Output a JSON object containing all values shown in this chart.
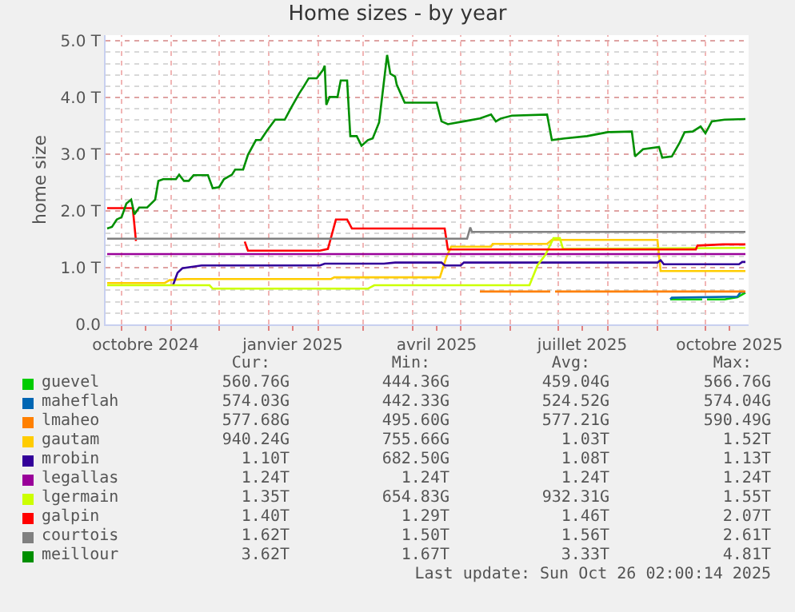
{
  "chart_data": {
    "type": "line",
    "title": "Home sizes - by year",
    "ylabel": "home size",
    "xlim": [
      "2024-09-21",
      "2025-10-28"
    ],
    "xticks": [
      {
        "value": "2024-10-01",
        "label": null
      },
      {
        "value": "2024-10-16",
        "label": "octobre 2024"
      },
      {
        "value": "2024-11-01",
        "label": null
      },
      {
        "value": "2024-12-01",
        "label": null
      },
      {
        "value": "2025-01-01",
        "label": null
      },
      {
        "value": "2025-01-16",
        "label": "janvier 2025"
      },
      {
        "value": "2025-02-01",
        "label": null
      },
      {
        "value": "2025-03-01",
        "label": null
      },
      {
        "value": "2025-04-01",
        "label": null
      },
      {
        "value": "2025-04-16",
        "label": "avril 2025"
      },
      {
        "value": "2025-05-01",
        "label": null
      },
      {
        "value": "2025-06-01",
        "label": null
      },
      {
        "value": "2025-07-01",
        "label": null
      },
      {
        "value": "2025-07-16",
        "label": "juillet 2025"
      },
      {
        "value": "2025-08-01",
        "label": null
      },
      {
        "value": "2025-09-01",
        "label": null
      },
      {
        "value": "2025-10-01",
        "label": null
      },
      {
        "value": "2025-10-16",
        "label": "octobre 2025"
      }
    ],
    "ylim": [
      0,
      5.1
    ],
    "yticks": [
      {
        "value": 0,
        "label": "0.0"
      },
      {
        "value": 1,
        "label": "1.0 T"
      },
      {
        "value": 2,
        "label": "2.0 T"
      },
      {
        "value": 3,
        "label": "3.0 T"
      },
      {
        "value": 4,
        "label": "4.0 T"
      },
      {
        "value": 5,
        "label": "5.0 T"
      }
    ],
    "grid": true,
    "legend": "bottom",
    "marker": "none",
    "line_style": "solid",
    "series": [
      {
        "name": "guevel",
        "color": "#00cc00",
        "x": [
          "2025-09-09",
          "2025-09-29",
          "2025-09-30",
          "2025-10-02",
          "2025-10-13",
          "2025-10-15",
          "2025-10-21",
          "2025-10-26"
        ],
        "values": [
          0.44,
          0.44,
          null,
          0.44,
          0.44,
          0.45,
          0.48,
          0.56
        ]
      },
      {
        "name": "maheflah",
        "color": "#0066b3",
        "x": [
          "2025-09-09",
          "2025-09-10",
          "2025-10-21",
          "2025-10-23",
          "2025-10-26"
        ],
        "values": [
          0.44,
          0.47,
          0.49,
          0.57,
          0.57
        ]
      },
      {
        "name": "lmaheo",
        "color": "#ff8000",
        "x": [
          "2025-05-13",
          "2025-06-26",
          "2025-06-27",
          "2025-06-29",
          "2025-10-26"
        ],
        "values": [
          0.58,
          0.58,
          null,
          0.58,
          0.58
        ]
      },
      {
        "name": "gautam",
        "color": "#ffcc00",
        "x": [
          "2024-09-22",
          "2024-10-28",
          "2024-10-31",
          "2024-11-09",
          "2025-02-09",
          "2025-02-11",
          "2025-04-18",
          "2025-04-22",
          "2025-04-25",
          "2025-05-20",
          "2025-05-21",
          "2025-06-24",
          "2025-06-27",
          "2025-09-01",
          "2025-09-03",
          "2025-10-26"
        ],
        "values": [
          0.73,
          0.73,
          0.78,
          0.8,
          0.8,
          0.83,
          0.83,
          1.18,
          1.37,
          1.37,
          1.42,
          1.42,
          1.49,
          1.49,
          0.94,
          0.94
        ]
      },
      {
        "name": "mrobin",
        "color": "#330099",
        "x": [
          "2024-11-02",
          "2024-11-05",
          "2024-11-08",
          "2024-11-20",
          "2025-02-02",
          "2025-02-05",
          "2025-03-14",
          "2025-03-21",
          "2025-04-19",
          "2025-04-21",
          "2025-05-01",
          "2025-05-03",
          "2025-09-01",
          "2025-09-03",
          "2025-09-05",
          "2025-10-22",
          "2025-10-24",
          "2025-10-26"
        ],
        "values": [
          0.68,
          0.91,
          0.99,
          1.04,
          1.04,
          1.07,
          1.07,
          1.09,
          1.09,
          1.04,
          1.04,
          1.09,
          1.09,
          1.13,
          1.06,
          1.06,
          1.1,
          1.1
        ]
      },
      {
        "name": "legallas",
        "color": "#990099",
        "x": [
          "2024-09-22",
          "2025-10-26"
        ],
        "values": [
          1.24,
          1.24
        ]
      },
      {
        "name": "lgermain",
        "color": "#ccff00",
        "x": [
          "2024-09-22",
          "2024-10-31",
          "2024-11-25",
          "2024-11-27",
          "2025-03-04",
          "2025-03-08",
          "2025-06-13",
          "2025-06-18",
          "2025-06-23",
          "2025-06-28",
          "2025-07-02",
          "2025-07-04",
          "2025-10-26"
        ],
        "values": [
          0.69,
          0.69,
          0.69,
          0.63,
          0.63,
          0.69,
          0.69,
          1.04,
          1.23,
          1.52,
          1.52,
          1.33,
          1.35
        ]
      },
      {
        "name": "galpin",
        "color": "#ff0000",
        "x": [
          "2024-09-22",
          "2024-10-08",
          "2024-10-10",
          "2024-10-11",
          "2024-12-17",
          "2024-12-19",
          "2025-02-02",
          "2025-02-07",
          "2025-02-12",
          "2025-02-19",
          "2025-02-22",
          "2025-04-21",
          "2025-04-23",
          "2025-09-25",
          "2025-09-26",
          "2025-10-12",
          "2025-10-26"
        ],
        "values": [
          2.05,
          2.05,
          1.47,
          null,
          1.46,
          1.3,
          1.3,
          1.33,
          1.85,
          1.85,
          1.69,
          1.69,
          1.32,
          1.32,
          1.39,
          1.41,
          1.41
        ]
      },
      {
        "name": "courtois",
        "color": "#808080",
        "x": [
          "2024-09-22",
          "2025-05-05",
          "2025-05-07",
          "2025-05-08",
          "2025-10-26"
        ],
        "values": [
          1.51,
          1.51,
          1.71,
          1.63,
          1.63
        ]
      },
      {
        "name": "meillour",
        "color": "#008f00",
        "x": [
          "2024-09-22",
          "2024-09-25",
          "2024-09-28",
          "2024-10-01",
          "2024-10-04",
          "2024-10-07",
          "2024-10-09",
          "2024-10-12",
          "2024-10-17",
          "2024-10-22",
          "2024-10-24",
          "2024-10-27",
          "2024-11-04",
          "2024-11-06",
          "2024-11-09",
          "2024-11-12",
          "2024-11-15",
          "2024-11-24",
          "2024-11-27",
          "2024-12-01",
          "2024-12-04",
          "2024-12-09",
          "2024-12-11",
          "2024-12-16",
          "2024-12-19",
          "2024-12-24",
          "2024-12-27",
          "2024-12-31",
          "2025-01-05",
          "2025-01-11",
          "2025-01-15",
          "2025-01-20",
          "2025-01-23",
          "2025-01-26",
          "2025-01-31",
          "2025-02-04",
          "2025-02-05",
          "2025-02-06",
          "2025-02-08",
          "2025-02-13",
          "2025-02-15",
          "2025-02-19",
          "2025-02-21",
          "2025-02-25",
          "2025-02-28",
          "2025-03-04",
          "2025-03-07",
          "2025-03-11",
          "2025-03-13",
          "2025-03-16",
          "2025-03-18",
          "2025-03-21",
          "2025-03-22",
          "2025-03-27",
          "2025-04-16",
          "2025-04-19",
          "2025-04-23",
          "2025-05-03",
          "2025-05-13",
          "2025-05-20",
          "2025-05-23",
          "2025-05-26",
          "2025-06-02",
          "2025-06-24",
          "2025-06-27",
          "2025-07-05",
          "2025-07-19",
          "2025-08-01",
          "2025-08-16",
          "2025-08-18",
          "2025-08-23",
          "2025-09-02",
          "2025-09-04",
          "2025-09-10",
          "2025-09-15",
          "2025-09-18",
          "2025-09-23",
          "2025-09-28",
          "2025-10-01",
          "2025-10-05",
          "2025-10-13",
          "2025-10-26"
        ],
        "values": [
          1.69,
          1.72,
          1.85,
          1.89,
          2.13,
          2.2,
          1.94,
          2.06,
          2.06,
          2.2,
          2.53,
          2.56,
          2.56,
          2.64,
          2.53,
          2.53,
          2.63,
          2.63,
          2.4,
          2.42,
          2.56,
          2.64,
          2.73,
          2.73,
          2.99,
          3.25,
          3.25,
          3.42,
          3.61,
          3.61,
          3.82,
          4.07,
          4.2,
          4.34,
          4.34,
          4.49,
          4.56,
          3.87,
          4.01,
          4.01,
          4.3,
          4.3,
          3.32,
          3.32,
          3.15,
          3.25,
          3.28,
          3.56,
          4.04,
          4.75,
          4.42,
          4.37,
          4.23,
          3.91,
          3.91,
          3.58,
          3.53,
          3.58,
          3.63,
          3.7,
          3.58,
          3.63,
          3.68,
          3.7,
          3.25,
          3.28,
          3.32,
          3.39,
          3.4,
          2.96,
          3.09,
          3.13,
          2.94,
          2.96,
          3.21,
          3.39,
          3.4,
          3.49,
          3.37,
          3.58,
          3.61,
          3.62
        ]
      }
    ],
    "annotations": [
      "Cur:",
      "Min:",
      "Avg:",
      "Max:",
      "560.76G",
      "444.36G",
      "459.04G",
      "566.76G",
      "574.03G",
      "442.33G",
      "524.52G",
      "574.04G",
      "577.68G",
      "495.60G",
      "577.21G",
      "590.49G",
      "940.24G",
      "755.66G",
      "1.03T",
      "1.52T",
      "1.10T",
      "682.50G",
      "1.08T",
      "1.13T",
      "1.24T",
      "1.24T",
      "1.24T",
      "1.24T",
      "1.35T",
      "654.83G",
      "932.31G",
      "1.55T",
      "1.40T",
      "1.29T",
      "1.46T",
      "2.07T",
      "1.62T",
      "1.50T",
      "1.56T",
      "2.61T",
      "3.62T",
      "1.67T",
      "3.33T",
      "4.81T",
      "Last update: Sun Oct 26 02:00:14 2025"
    ]
  }
}
